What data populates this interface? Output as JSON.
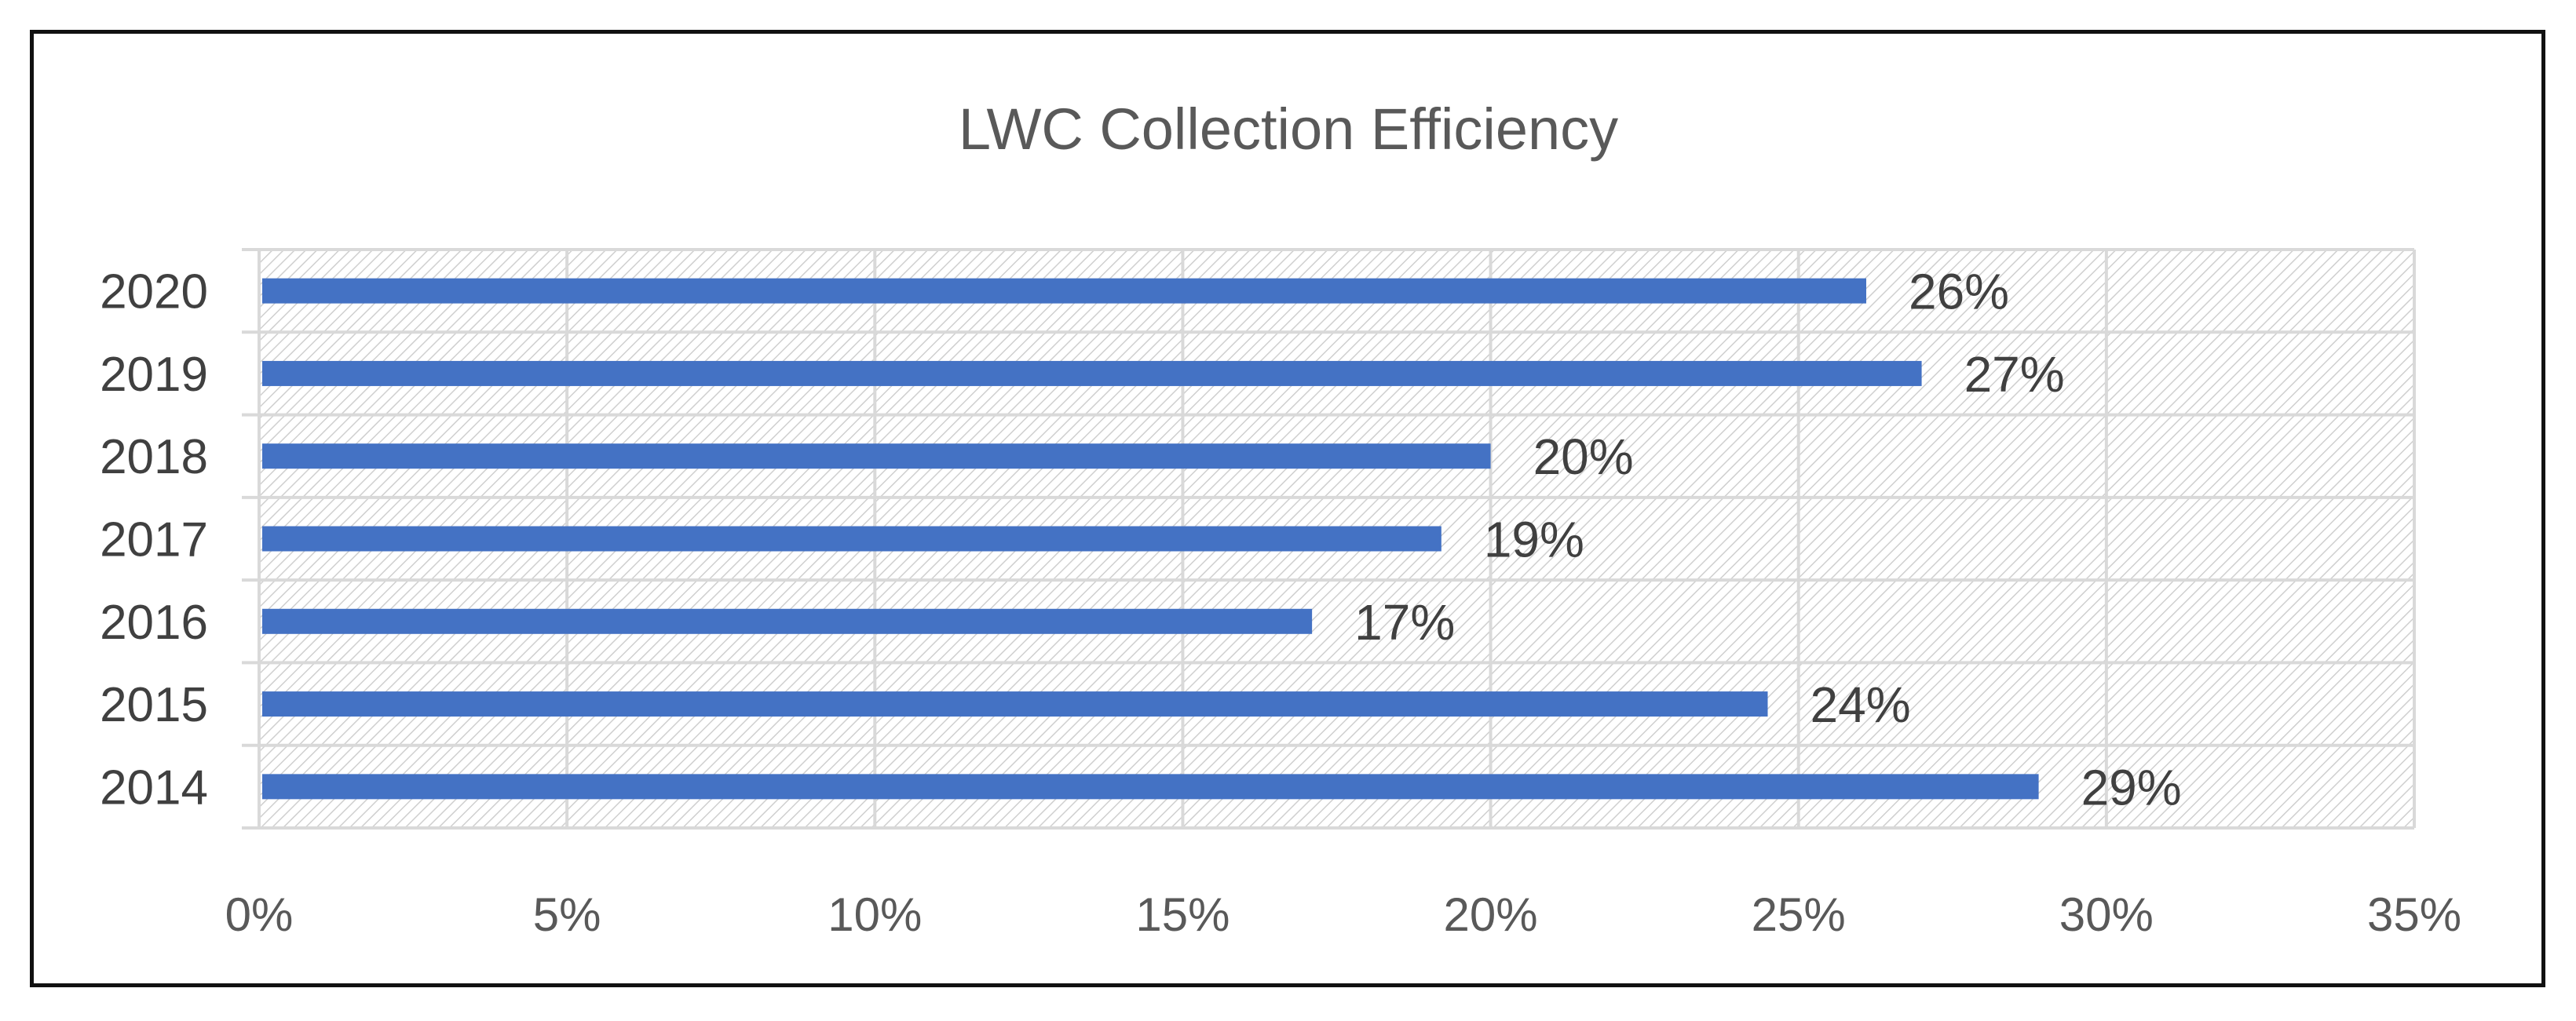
{
  "chart_data": {
    "type": "bar",
    "orientation": "horizontal",
    "title": "LWC Collection Efficiency",
    "categories": [
      "2020",
      "2019",
      "2018",
      "2017",
      "2016",
      "2015",
      "2014"
    ],
    "values": [
      26.1,
      27.0,
      20.0,
      19.2,
      17.1,
      24.5,
      28.9
    ],
    "data_labels": [
      "26%",
      "27%",
      "20%",
      "19%",
      "17%",
      "24%",
      "29%"
    ],
    "xlim": [
      0,
      35
    ],
    "x_ticks": [
      "0%",
      "5%",
      "10%",
      "15%",
      "20%",
      "25%",
      "30%",
      "35%"
    ],
    "xlabel": "",
    "ylabel": "",
    "grid": true,
    "legend": "none",
    "colors": {
      "bar": "#4472C4",
      "grid": "#D9D9D9",
      "plot_hatch": "#C8C8C8",
      "text": "#595959"
    }
  }
}
